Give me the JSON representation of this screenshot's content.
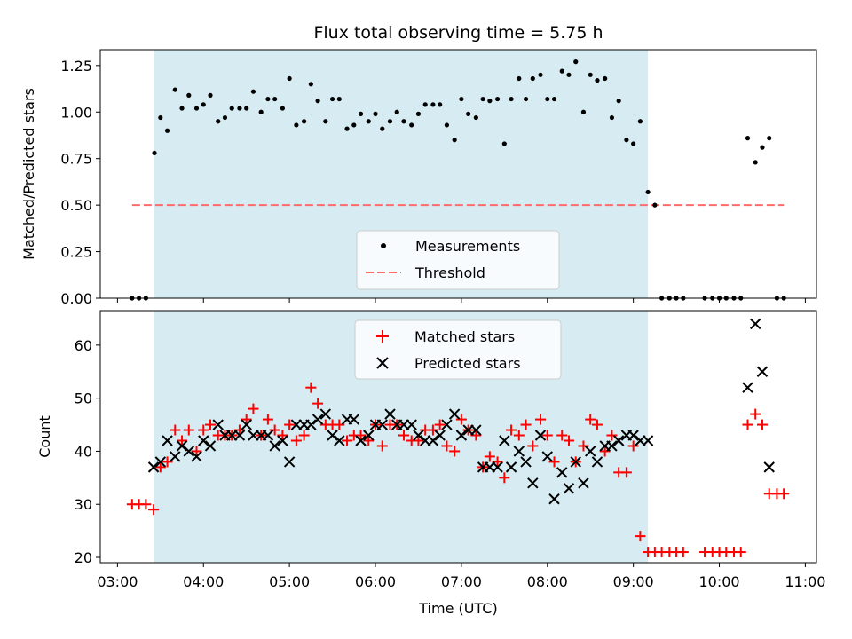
{
  "chart_data": [
    {
      "type": "scatter",
      "panel": "top",
      "title": "Flux total observing time = 5.75 h",
      "xlabel": "",
      "ylabel": "Matched/Predicted stars",
      "xlim": [
        2.8,
        11.13
      ],
      "ylim": [
        0,
        1.335
      ],
      "yticks": [
        0.0,
        0.25,
        0.5,
        0.75,
        1.0,
        1.25
      ],
      "ytick_labels": [
        "0.00",
        "0.25",
        "0.50",
        "0.75",
        "1.00",
        "1.25"
      ],
      "xtick_values": [
        3,
        4,
        5,
        6,
        7,
        8,
        9,
        10,
        11
      ],
      "legend_position": "lower-center",
      "shaded_span": {
        "x_start": 3.42,
        "x_end": 9.17,
        "color": "#add8e6"
      },
      "threshold": {
        "name": "Threshold",
        "y": 0.5,
        "x_start": 3.17,
        "x_end": 10.75,
        "color": "#ff6b6b"
      },
      "series": [
        {
          "name": "Measurements",
          "color": "#000000",
          "x": [
            3.17,
            3.25,
            3.33,
            3.43,
            3.5,
            3.58,
            3.67,
            3.75,
            3.83,
            3.92,
            4.0,
            4.08,
            4.17,
            4.25,
            4.33,
            4.42,
            4.5,
            4.58,
            4.67,
            4.75,
            4.83,
            4.92,
            5.0,
            5.08,
            5.17,
            5.25,
            5.33,
            5.42,
            5.5,
            5.58,
            5.67,
            5.75,
            5.83,
            5.92,
            6.0,
            6.08,
            6.17,
            6.25,
            6.33,
            6.42,
            6.5,
            6.58,
            6.67,
            6.75,
            6.83,
            6.92,
            7.0,
            7.08,
            7.17,
            7.25,
            7.33,
            7.42,
            7.5,
            7.58,
            7.67,
            7.75,
            7.83,
            7.92,
            8.0,
            8.08,
            8.17,
            8.25,
            8.33,
            8.42,
            8.5,
            8.58,
            8.67,
            8.75,
            8.83,
            8.92,
            9.0,
            9.08,
            9.17,
            9.25,
            9.33,
            9.42,
            9.5,
            9.58,
            9.83,
            9.92,
            10.0,
            10.08,
            10.17,
            10.25,
            10.33,
            10.42,
            10.5,
            10.58,
            10.67,
            10.75
          ],
          "y": [
            0,
            0,
            0,
            0.78,
            0.97,
            0.9,
            1.12,
            1.02,
            1.09,
            1.02,
            1.04,
            1.09,
            0.95,
            0.97,
            1.02,
            1.02,
            1.02,
            1.11,
            1.0,
            1.07,
            1.07,
            1.02,
            1.18,
            0.93,
            0.95,
            1.15,
            1.06,
            0.95,
            1.07,
            1.07,
            0.91,
            0.93,
            0.99,
            0.95,
            0.99,
            0.91,
            0.95,
            1.0,
            0.95,
            0.93,
            0.99,
            1.04,
            1.04,
            1.04,
            0.93,
            0.85,
            1.07,
            0.99,
            0.97,
            1.07,
            1.06,
            1.07,
            0.83,
            1.07,
            1.18,
            1.07,
            1.18,
            1.2,
            1.07,
            1.07,
            1.22,
            1.2,
            1.27,
            1.0,
            1.2,
            1.17,
            1.18,
            0.97,
            1.06,
            0.85,
            0.83,
            0.95,
            0.57,
            0.5,
            0,
            0,
            0,
            0,
            0,
            0,
            0,
            0,
            0,
            0,
            0.86,
            0.73,
            0.81,
            0.86,
            0,
            0
          ]
        }
      ]
    },
    {
      "type": "scatter",
      "panel": "bottom",
      "title": "",
      "xlabel": "Time (UTC)",
      "ylabel": "Count",
      "xlim": [
        2.8,
        11.13
      ],
      "ylim": [
        19.0,
        66.5
      ],
      "yticks": [
        20,
        30,
        40,
        50,
        60
      ],
      "xticks": [
        "03:00",
        "04:00",
        "05:00",
        "06:00",
        "07:00",
        "08:00",
        "09:00",
        "10:00",
        "11:00"
      ],
      "xtick_values": [
        3,
        4,
        5,
        6,
        7,
        8,
        9,
        10,
        11
      ],
      "legend_position": "upper-center",
      "shaded_span": {
        "x_start": 3.42,
        "x_end": 9.17,
        "color": "#add8e6"
      },
      "series": [
        {
          "name": "Matched stars",
          "marker": "plus",
          "color": "#ff0000",
          "x": [
            3.17,
            3.25,
            3.33,
            3.42,
            3.5,
            3.58,
            3.67,
            3.75,
            3.83,
            3.92,
            4.0,
            4.08,
            4.17,
            4.25,
            4.33,
            4.42,
            4.5,
            4.58,
            4.67,
            4.75,
            4.83,
            4.92,
            5.0,
            5.08,
            5.17,
            5.25,
            5.33,
            5.42,
            5.5,
            5.58,
            5.67,
            5.75,
            5.83,
            5.92,
            6.0,
            6.08,
            6.17,
            6.25,
            6.33,
            6.42,
            6.5,
            6.58,
            6.67,
            6.75,
            6.83,
            6.92,
            7.0,
            7.08,
            7.17,
            7.25,
            7.33,
            7.42,
            7.5,
            7.58,
            7.67,
            7.75,
            7.83,
            7.92,
            8.0,
            8.08,
            8.17,
            8.25,
            8.33,
            8.42,
            8.5,
            8.58,
            8.67,
            8.75,
            8.83,
            8.92,
            9.0,
            9.08,
            9.17,
            9.25,
            9.33,
            9.42,
            9.5,
            9.58,
            9.83,
            9.92,
            10.0,
            10.08,
            10.17,
            10.25,
            10.33,
            10.42,
            10.5,
            10.58,
            10.67,
            10.75
          ],
          "y": [
            30,
            30,
            30,
            29,
            37,
            38,
            44,
            42,
            44,
            40,
            44,
            45,
            43,
            43,
            43,
            44,
            46,
            48,
            43,
            46,
            44,
            43,
            45,
            42,
            43,
            52,
            49,
            45,
            45,
            45,
            42,
            43,
            43,
            42,
            45,
            41,
            45,
            45,
            43,
            42,
            42,
            44,
            44,
            45,
            41,
            40,
            46,
            44,
            43,
            37,
            39,
            38,
            35,
            44,
            43,
            45,
            41,
            46,
            43,
            38,
            43,
            42,
            38,
            41,
            46,
            45,
            40,
            43,
            36,
            36,
            41,
            24,
            21,
            21,
            21,
            21,
            21,
            21,
            21,
            21,
            21,
            21,
            21,
            21,
            45,
            47,
            45,
            32,
            32,
            32
          ]
        },
        {
          "name": "Predicted stars",
          "marker": "x",
          "color": "#000000",
          "x": [
            3.42,
            3.5,
            3.58,
            3.67,
            3.75,
            3.83,
            3.92,
            4.0,
            4.08,
            4.17,
            4.25,
            4.33,
            4.42,
            4.5,
            4.58,
            4.67,
            4.75,
            4.83,
            4.92,
            5.0,
            5.08,
            5.17,
            5.25,
            5.33,
            5.42,
            5.5,
            5.58,
            5.67,
            5.75,
            5.83,
            5.92,
            6.0,
            6.08,
            6.17,
            6.25,
            6.33,
            6.42,
            6.5,
            6.58,
            6.67,
            6.75,
            6.83,
            6.92,
            7.0,
            7.08,
            7.17,
            7.25,
            7.33,
            7.42,
            7.5,
            7.58,
            7.67,
            7.75,
            7.83,
            7.92,
            8.0,
            8.08,
            8.17,
            8.25,
            8.33,
            8.42,
            8.5,
            8.58,
            8.67,
            8.75,
            8.83,
            8.92,
            9.0,
            9.08,
            9.17,
            10.33,
            10.42,
            10.5,
            10.58
          ],
          "y": [
            37,
            38,
            42,
            39,
            41,
            40,
            39,
            42,
            41,
            45,
            43,
            43,
            43,
            45,
            43,
            43,
            43,
            41,
            42,
            38,
            45,
            45,
            45,
            46,
            47,
            43,
            42,
            46,
            46,
            42,
            43,
            45,
            45,
            47,
            45,
            45,
            45,
            43,
            42,
            42,
            43,
            45,
            47,
            43,
            44,
            44,
            37,
            37,
            37,
            42,
            37,
            40,
            38,
            34,
            43,
            39,
            31,
            36,
            33,
            38,
            34,
            40,
            38,
            41,
            41,
            42,
            43,
            43,
            42,
            42,
            52,
            64,
            55,
            37
          ]
        }
      ]
    }
  ]
}
